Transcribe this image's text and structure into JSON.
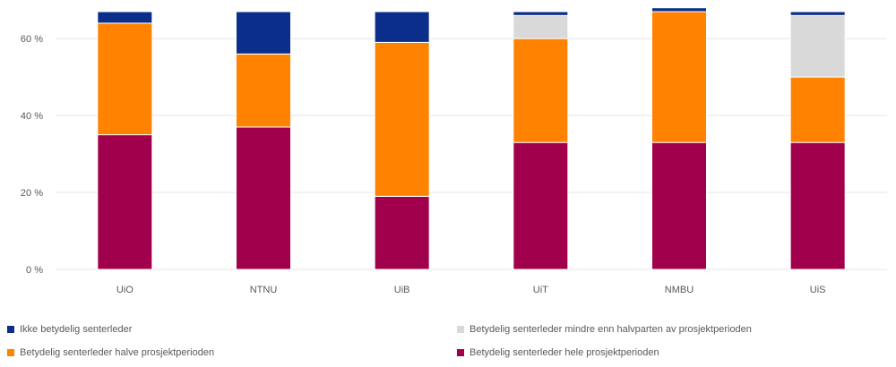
{
  "chart_data": {
    "type": "bar",
    "stacked": true,
    "categories": [
      "UiO",
      "NTNU",
      "UiB",
      "UiT",
      "NMBU",
      "UiS"
    ],
    "y_ticks": [
      "0 %",
      "20 %",
      "40 %",
      "60 %"
    ],
    "ylim": [
      0,
      67
    ],
    "grid": true,
    "legend_position": "bottom",
    "series": [
      {
        "name": "Betydelig senterleder hele prosjektperioden",
        "color": "#a1004c",
        "values": [
          35,
          37,
          19,
          33,
          33,
          33
        ]
      },
      {
        "name": "Betydelig senterleder halve prosjektperioden",
        "color": "#ff8200",
        "values": [
          29,
          19,
          40,
          27,
          34,
          17
        ]
      },
      {
        "name": "Betydelig senterleder mindre enn halvparten av prosjektperioden",
        "color": "#d9d9d9",
        "values": [
          0,
          0,
          0,
          6,
          0,
          16
        ]
      },
      {
        "name": "Ikke betydelig senterleder",
        "color": "#0b2e8a",
        "values": [
          3,
          11,
          8,
          1,
          1,
          1
        ]
      }
    ]
  }
}
